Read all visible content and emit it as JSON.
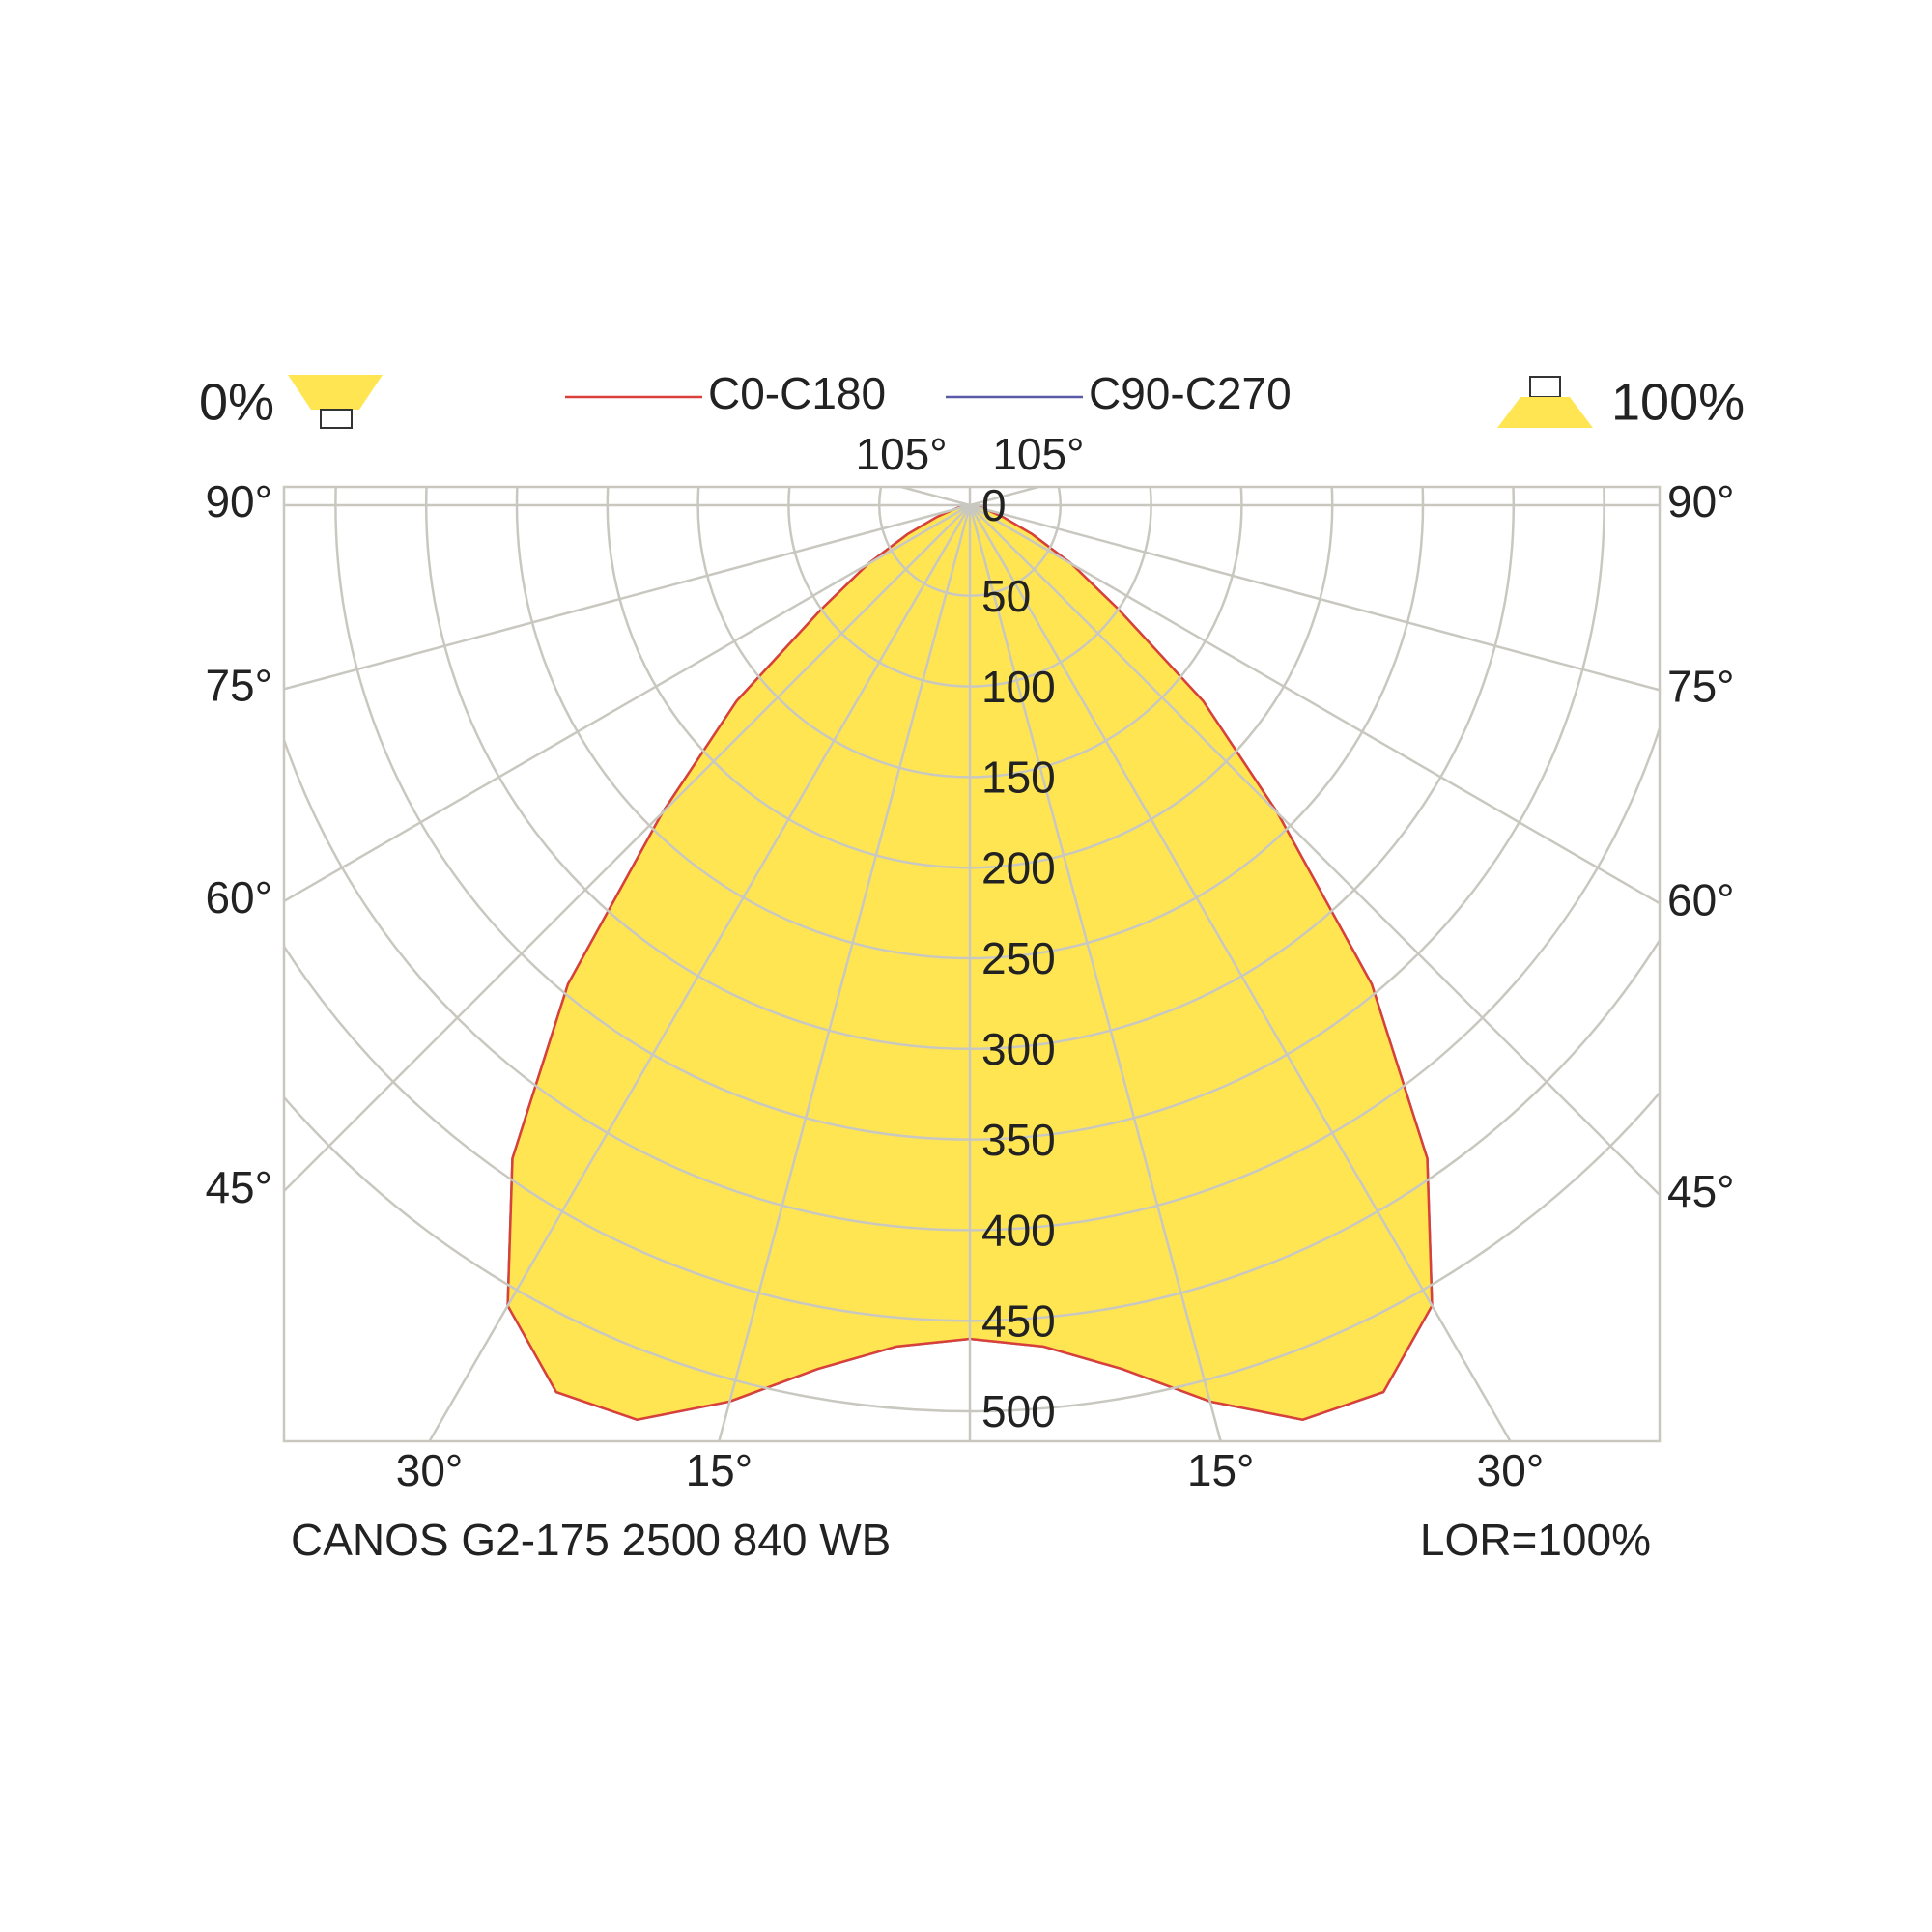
{
  "header": {
    "left_label": "0%",
    "right_label": "100%"
  },
  "chart_data": {
    "type": "polar",
    "angles": [
      0,
      5,
      10,
      15,
      20,
      25,
      30,
      35,
      40,
      45,
      50,
      55,
      60,
      65,
      70,
      75,
      80,
      85,
      90
    ],
    "series": [
      {
        "name": "C0-C180",
        "color": "#d9403a",
        "values": [
          460,
          466,
          484,
          512,
          537,
          540,
          510,
          440,
          345,
          240,
          168,
          100,
          65,
          38,
          20,
          10,
          5,
          2,
          0
        ]
      },
      {
        "name": "C90-C270",
        "color": "#5a5aa8",
        "values": [
          460,
          466,
          484,
          512,
          537,
          540,
          510,
          440,
          345,
          240,
          168,
          100,
          65,
          38,
          20,
          10,
          5,
          2,
          0
        ]
      }
    ],
    "fill": "#ffe552",
    "rlim": [
      0,
      500
    ],
    "rticks": [
      0,
      50,
      100,
      150,
      200,
      250,
      300,
      350,
      400,
      450,
      500
    ],
    "angle_ticks": [
      {
        "value": 15,
        "label": "15°"
      },
      {
        "value": 30,
        "label": "30°"
      },
      {
        "value": 45,
        "label": "45°"
      },
      {
        "value": 60,
        "label": "60°"
      },
      {
        "value": 75,
        "label": "75°"
      },
      {
        "value": 90,
        "label": "90°"
      },
      {
        "value": 105,
        "label": "105°"
      }
    ],
    "grid": true
  },
  "footer": {
    "left": "CANOS G2-175 2500 840 WB",
    "right": "LOR=100%"
  }
}
